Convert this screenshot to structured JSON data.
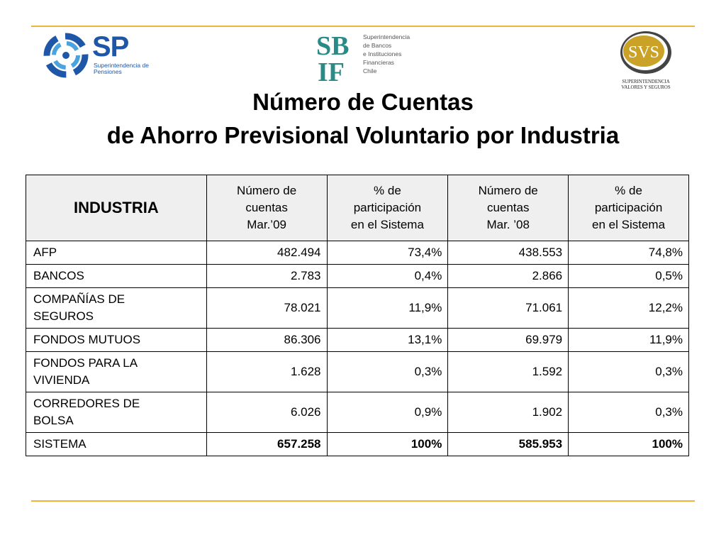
{
  "logos": {
    "sp": {
      "letters": "SP",
      "subtitle": "Superintendencia de Pensiones"
    },
    "sbif": {
      "letters_top": "SB",
      "letters_bottom": "IF",
      "lines": [
        "Superintendencia",
        "de Bancos",
        "e Instituciones",
        "Financieras",
        "Chile"
      ]
    },
    "svs": {
      "letters": "SVS",
      "lines": [
        "SUPERINTENDENCIA",
        "VALORES Y SEGUROS"
      ]
    }
  },
  "title": {
    "line1": "Número de Cuentas",
    "line2": "de Ahorro Previsional Voluntario por Industria"
  },
  "table": {
    "headers": {
      "industria": "INDUSTRIA",
      "col1": [
        "Número de",
        "cuentas",
        "Mar.’09"
      ],
      "col2": [
        "% de",
        "participación",
        "en el Sistema"
      ],
      "col3": [
        "Número de",
        "cuentas",
        "Mar. ’08"
      ],
      "col4": [
        "% de",
        "participación",
        "en el Sistema"
      ]
    },
    "rows": [
      {
        "name": [
          "AFP"
        ],
        "c1": "482.494",
        "c2": "73,4%",
        "c3": "438.553",
        "c4": "74,8%"
      },
      {
        "name": [
          "BANCOS"
        ],
        "c1": "2.783",
        "c2": "0,4%",
        "c3": "2.866",
        "c4": "0,5%"
      },
      {
        "name": [
          "COMPAÑÍAS DE",
          "SEGUROS"
        ],
        "c1": "78.021",
        "c2": "11,9%",
        "c3": "71.061",
        "c4": "12,2%"
      },
      {
        "name": [
          "FONDOS MUTUOS"
        ],
        "c1": "86.306",
        "c2": "13,1%",
        "c3": "69.979",
        "c4": "11,9%"
      },
      {
        "name": [
          "FONDOS PARA LA",
          "VIVIENDA"
        ],
        "c1": "1.628",
        "c2": "0,3%",
        "c3": "1.592",
        "c4": "0,3%"
      },
      {
        "name": [
          "CORREDORES DE",
          "BOLSA"
        ],
        "c1": "6.026",
        "c2": "0,9%",
        "c3": "1.902",
        "c4": "0,3%"
      }
    ],
    "total": {
      "name": "SISTEMA",
      "c1": "657.258",
      "c2": "100%",
      "c3": "585.953",
      "c4": "100%"
    }
  },
  "colors": {
    "accent_rule": "#f2b33d",
    "sp_blue": "#1f57a8",
    "sbif_teal": "#2a8a86",
    "svs_gold": "#c9a227",
    "header_bg": "#efefef"
  }
}
